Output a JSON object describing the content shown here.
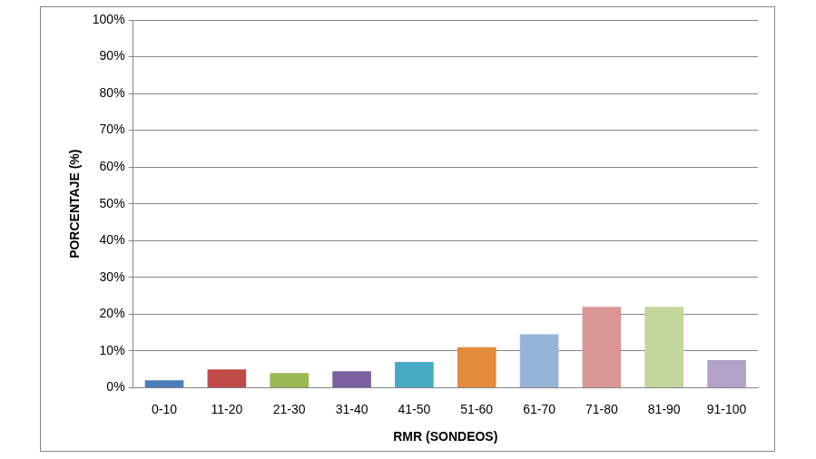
{
  "chart_data": {
    "type": "bar",
    "categories": [
      "0-10",
      "11-20",
      "21-30",
      "31-40",
      "41-50",
      "51-60",
      "61-70",
      "71-80",
      "81-90",
      "91-100"
    ],
    "values": [
      2,
      5,
      4,
      4.5,
      7,
      11,
      14.5,
      22,
      22,
      7.5
    ],
    "colors": [
      "#4a7ebb",
      "#be4b48",
      "#98b954",
      "#7d60a0",
      "#46aac5",
      "#e48a3c",
      "#95b3d7",
      "#d99694",
      "#c3d69b",
      "#b2a2c7"
    ],
    "x_label": "RMR (SONDEOS)",
    "y_label": "PORCENTAJE (%)",
    "ylim": [
      0,
      100
    ],
    "yticks": [
      {
        "value": 0,
        "label": "0%"
      },
      {
        "value": 10,
        "label": "10%"
      },
      {
        "value": 20,
        "label": "20%"
      },
      {
        "value": 30,
        "label": "30%"
      },
      {
        "value": 40,
        "label": "40%"
      },
      {
        "value": 50,
        "label": "50%"
      },
      {
        "value": 60,
        "label": "60%"
      },
      {
        "value": 70,
        "label": "70%"
      },
      {
        "value": 80,
        "label": "80%"
      },
      {
        "value": 90,
        "label": "90%"
      },
      {
        "value": 100,
        "label": "100%"
      }
    ],
    "grid": true
  }
}
